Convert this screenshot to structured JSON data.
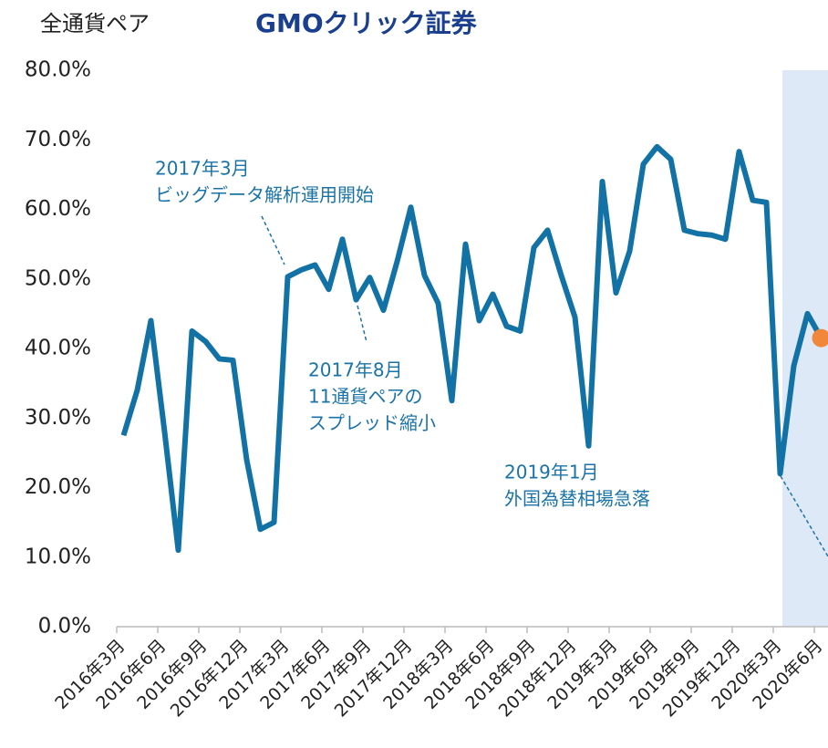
{
  "chart_data": {
    "type": "line",
    "title": "全通貨ペア",
    "logo": "GMOクリック証券",
    "categories": [
      "2016年3月",
      null,
      null,
      "2016年6月",
      null,
      null,
      "2016年9月",
      null,
      null,
      "2016年12月",
      null,
      null,
      "2017年3月",
      null,
      null,
      "2017年6月",
      null,
      null,
      "2017年9月",
      null,
      null,
      "2017年12月",
      null,
      null,
      "2018年3月",
      null,
      null,
      "2018年6月",
      null,
      null,
      "2018年9月",
      null,
      null,
      "2018年12月",
      null,
      null,
      "2019年3月",
      null,
      null,
      "2019年6月",
      null,
      null,
      "2019年9月",
      null,
      null,
      "2019年12月",
      null,
      null,
      "2020年3月",
      null,
      null,
      "2020年6月"
    ],
    "series": [
      {
        "color": "#1272a6",
        "highlight_color": "#f0873a",
        "values": [
          27.5,
          34,
          44,
          28,
          11,
          42.5,
          41,
          38.5,
          38.3,
          24,
          14,
          15,
          50.3,
          51.3,
          52,
          48.5,
          55.7,
          47,
          50.2,
          45.5,
          52.5,
          60.3,
          50.5,
          46.5,
          32.5,
          55,
          44,
          47.8,
          43.2,
          42.5,
          54.5,
          57,
          50.5,
          44.5,
          26,
          64,
          48,
          54,
          66.5,
          69,
          67.2,
          57,
          56.5,
          56.3,
          55.7,
          68.3,
          61.3,
          61,
          22,
          37.5,
          45,
          41.5
        ]
      }
    ],
    "ylim": [
      0,
      80
    ],
    "yticks": [
      {
        "value": 0,
        "label": "0.0%"
      },
      {
        "value": 10,
        "label": "10.0%"
      },
      {
        "value": 20,
        "label": "20.0%"
      },
      {
        "value": 30,
        "label": "30.0%"
      },
      {
        "value": 40,
        "label": "40.0%"
      },
      {
        "value": 50,
        "label": "50.0%"
      },
      {
        "value": 60,
        "label": "60.0%"
      },
      {
        "value": 70,
        "label": "70.0%"
      },
      {
        "value": 80,
        "label": "80.0%"
      }
    ],
    "annotations": [
      {
        "lines": [
          "2017年3月",
          "ビッグデータ解析運用開始"
        ]
      },
      {
        "lines": [
          "2017年8月",
          "11通貨ペアの",
          "スプレッド縮小"
        ]
      },
      {
        "lines": [
          "2019年1月",
          "外国為替相場急落"
        ]
      }
    ]
  }
}
